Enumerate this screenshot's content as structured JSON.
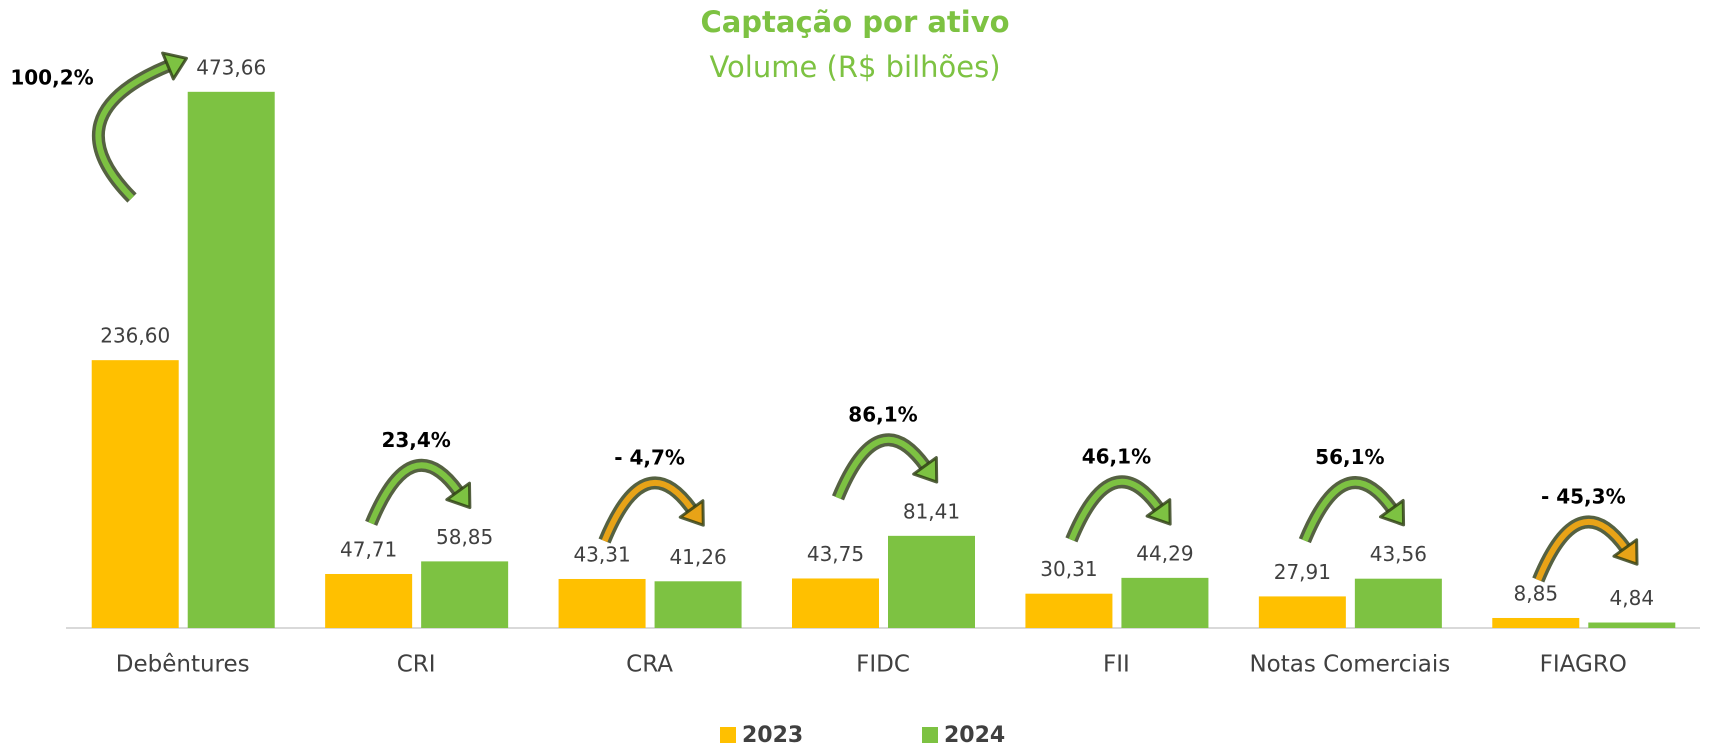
{
  "chart_data": {
    "type": "bar",
    "title": "Captação por ativo",
    "subtitle": "Volume (R$ bilhões)",
    "categories": [
      "Debêntures",
      "CRI",
      "CRA",
      "FIDC",
      "FII",
      "Notas Comerciais",
      "FIAGRO"
    ],
    "series": [
      {
        "name": "2023",
        "color": "#FFC000",
        "values": [
          236.6,
          47.71,
          43.31,
          43.75,
          30.31,
          27.91,
          8.85
        ],
        "value_labels": [
          "236,60",
          "47,71",
          "43,31",
          "43,75",
          "30,31",
          "27,91",
          "8,85"
        ]
      },
      {
        "name": "2024",
        "color": "#7DC242",
        "values": [
          473.66,
          58.85,
          41.26,
          81.41,
          44.29,
          43.56,
          4.84
        ],
        "value_labels": [
          "473,66",
          "58,85",
          "41,26",
          "81,41",
          "44,29",
          "43,56",
          "4,84"
        ]
      }
    ],
    "annotations": [
      {
        "text": "100,2%",
        "color": "#7DC242"
      },
      {
        "text": "23,4%",
        "color": "#7DC242"
      },
      {
        "text": "- 4,7%",
        "color": "#E8A317"
      },
      {
        "text": "86,1%",
        "color": "#7DC242"
      },
      {
        "text": "46,1%",
        "color": "#7DC242"
      },
      {
        "text": "56,1%",
        "color": "#7DC242"
      },
      {
        "text": "- 45,3%",
        "color": "#E8A317"
      }
    ],
    "ylim": [
      0,
      500
    ],
    "legend": "bottom"
  }
}
